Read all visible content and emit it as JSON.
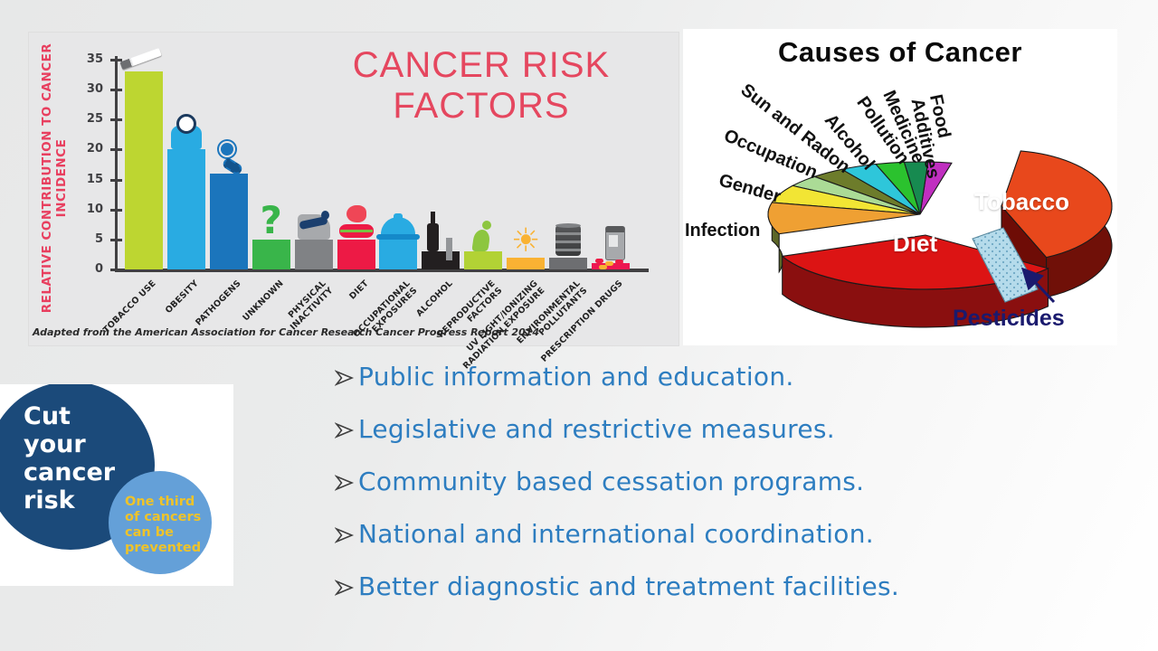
{
  "chart_data": [
    {
      "type": "bar",
      "title": "CANCER RISK FACTORS",
      "title_color": "#e5475f",
      "ylabel": "RELATIVE CONTRIBUTION TO CANCER INCIDENCE",
      "xlabel": "",
      "attribution": "Adapted from the American Association for Cancer Research Cancer Progress Report 2014",
      "ylim": [
        0,
        35
      ],
      "yticks": [
        0,
        5,
        10,
        15,
        20,
        25,
        30,
        35
      ],
      "grid": false,
      "categories": [
        "TOBACCO USE",
        "OBESITY",
        "PATHOGENS",
        "UNKNOWN",
        "PHYSICAL\nINACTIVITY",
        "DIET",
        "OCCUPATIONAL\nEXPOSURES",
        "ALCOHOL",
        "REPRODUCTIVE\nFACTORS",
        "UV LIGHT/IONIZING\nRADIATION EXPOSURE",
        "ENVIRONMENTAL\nPOLLUTANTS",
        "PRESCRIPTION DRUGS"
      ],
      "values": [
        33,
        20,
        16,
        5,
        5,
        5,
        5,
        3,
        3,
        2,
        2,
        1
      ],
      "bar_colors": [
        "#bdd631",
        "#29abe2",
        "#1b75bc",
        "#39b54a",
        "#808285",
        "#ed1a45",
        "#29abe2",
        "#231f20",
        "#b2d235",
        "#f9b233",
        "#6d6e71",
        "#ed1651"
      ],
      "icons": [
        {
          "name": "cigarette-icon",
          "glyph": ""
        },
        {
          "name": "scale-icon",
          "glyph": ""
        },
        {
          "name": "pathogen-icon",
          "glyph": ""
        },
        {
          "name": "question-mark-icon",
          "glyph": "?"
        },
        {
          "name": "recliner-icon",
          "glyph": ""
        },
        {
          "name": "burger-icon",
          "glyph": ""
        },
        {
          "name": "hard-hat-icon",
          "glyph": ""
        },
        {
          "name": "bottle-and-can-icon",
          "glyph": ""
        },
        {
          "name": "kneeling-figure-icon",
          "glyph": ""
        },
        {
          "name": "sun-icon",
          "glyph": "☀"
        },
        {
          "name": "oil-barrel-icon",
          "glyph": ""
        },
        {
          "name": "pill-bottle-icon",
          "glyph": ""
        }
      ]
    },
    {
      "type": "pie",
      "title": "Causes of Cancer",
      "values_are_estimated_percent": true,
      "slices": [
        {
          "label": "Tobacco",
          "color": "#e8481c",
          "value": 30
        },
        {
          "label": "Diet",
          "color": "#dc1414",
          "value": 33
        },
        {
          "label": "Pesticides",
          "color": "#b5dbeb",
          "value": 2
        },
        {
          "label": "Infection",
          "color": "#efa033",
          "value": 9
        },
        {
          "label": "Gender",
          "color": "#f2e534",
          "value": 6
        },
        {
          "label": "Occupation",
          "color": "#abdb96",
          "value": 4
        },
        {
          "label": "Sun and Radon",
          "color": "#6d7c2b",
          "value": 4
        },
        {
          "label": "Alcohol",
          "color": "#2ec6da",
          "value": 4
        },
        {
          "label": "Pollution",
          "color": "#2bc22e",
          "value": 3
        },
        {
          "label": "Medicine",
          "color": "#178a50",
          "value": 3
        },
        {
          "label": "Food Additives",
          "color": "#c02fc0",
          "value": 2
        }
      ]
    }
  ],
  "prevention_badge": {
    "headline": "Cut your cancer risk",
    "headline_color": "#ffffff",
    "subtext": "One third of cancers can be prevented",
    "subtext_color": "#eec32a",
    "dark_circle_color": "#1b4a7a",
    "light_circle_color": "#64a0d8"
  },
  "bullets": {
    "text_color": "#2d7dc0",
    "items": [
      "Public information and education.",
      "Legislative and restrictive measures.",
      "Community based cessation programs.",
      "National and international coordination.",
      "Better diagnostic and treatment facilities."
    ]
  }
}
